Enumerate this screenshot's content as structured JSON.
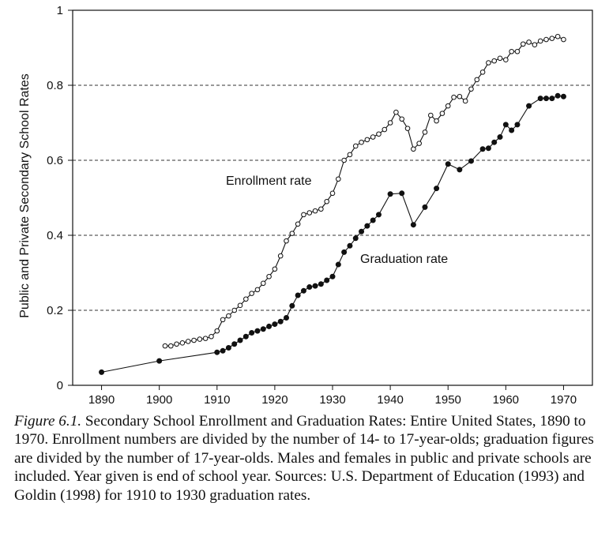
{
  "chart_data": {
    "type": "line",
    "ylabel": "Public and Private Secondary School Rates",
    "xlabel": "",
    "xlim": [
      1885,
      1975
    ],
    "ylim": [
      0,
      1
    ],
    "x_ticks": [
      "1890",
      "1900",
      "1910",
      "1920",
      "1930",
      "1940",
      "1950",
      "1960",
      "1970"
    ],
    "y_ticks": [
      "0",
      "0.2",
      "0.4",
      "0.6",
      "0.8",
      "1"
    ],
    "gridlines": "dashed horizontal at 0.2, 0.4, 0.6, 0.8",
    "series": [
      {
        "name": "Enrollment rate",
        "marker": "open-circle",
        "points": [
          [
            1901,
            0.105
          ],
          [
            1902,
            0.105
          ],
          [
            1903,
            0.11
          ],
          [
            1904,
            0.113
          ],
          [
            1905,
            0.117
          ],
          [
            1906,
            0.12
          ],
          [
            1907,
            0.123
          ],
          [
            1908,
            0.125
          ],
          [
            1909,
            0.13
          ],
          [
            1910,
            0.145
          ],
          [
            1911,
            0.175
          ],
          [
            1912,
            0.185
          ],
          [
            1913,
            0.2
          ],
          [
            1914,
            0.213
          ],
          [
            1915,
            0.23
          ],
          [
            1916,
            0.245
          ],
          [
            1917,
            0.255
          ],
          [
            1918,
            0.272
          ],
          [
            1919,
            0.29
          ],
          [
            1920,
            0.31
          ],
          [
            1921,
            0.345
          ],
          [
            1922,
            0.385
          ],
          [
            1923,
            0.405
          ],
          [
            1924,
            0.43
          ],
          [
            1925,
            0.455
          ],
          [
            1926,
            0.46
          ],
          [
            1927,
            0.465
          ],
          [
            1928,
            0.47
          ],
          [
            1929,
            0.49
          ],
          [
            1930,
            0.512
          ],
          [
            1931,
            0.55
          ],
          [
            1932,
            0.6
          ],
          [
            1933,
            0.615
          ],
          [
            1934,
            0.638
          ],
          [
            1935,
            0.648
          ],
          [
            1936,
            0.655
          ],
          [
            1937,
            0.662
          ],
          [
            1938,
            0.67
          ],
          [
            1939,
            0.682
          ],
          [
            1940,
            0.7
          ],
          [
            1941,
            0.728
          ],
          [
            1942,
            0.71
          ],
          [
            1943,
            0.685
          ],
          [
            1944,
            0.63
          ],
          [
            1945,
            0.645
          ],
          [
            1946,
            0.675
          ],
          [
            1947,
            0.72
          ],
          [
            1948,
            0.705
          ],
          [
            1949,
            0.725
          ],
          [
            1950,
            0.745
          ],
          [
            1951,
            0.768
          ],
          [
            1952,
            0.77
          ],
          [
            1953,
            0.758
          ],
          [
            1954,
            0.79
          ],
          [
            1955,
            0.815
          ],
          [
            1956,
            0.835
          ],
          [
            1957,
            0.86
          ],
          [
            1958,
            0.865
          ],
          [
            1959,
            0.872
          ],
          [
            1960,
            0.868
          ],
          [
            1961,
            0.89
          ],
          [
            1962,
            0.89
          ],
          [
            1963,
            0.91
          ],
          [
            1964,
            0.915
          ],
          [
            1965,
            0.908
          ],
          [
            1966,
            0.918
          ],
          [
            1967,
            0.922
          ],
          [
            1968,
            0.925
          ],
          [
            1969,
            0.93
          ],
          [
            1970,
            0.922
          ]
        ]
      },
      {
        "name": "Graduation rate",
        "marker": "filled-circle",
        "points": [
          [
            1890,
            0.035
          ],
          [
            1900,
            0.065
          ],
          [
            1910,
            0.088
          ],
          [
            1911,
            0.092
          ],
          [
            1912,
            0.1
          ],
          [
            1913,
            0.11
          ],
          [
            1914,
            0.12
          ],
          [
            1915,
            0.13
          ],
          [
            1916,
            0.14
          ],
          [
            1917,
            0.145
          ],
          [
            1918,
            0.15
          ],
          [
            1919,
            0.157
          ],
          [
            1920,
            0.163
          ],
          [
            1921,
            0.17
          ],
          [
            1922,
            0.18
          ],
          [
            1923,
            0.212
          ],
          [
            1924,
            0.24
          ],
          [
            1925,
            0.252
          ],
          [
            1926,
            0.262
          ],
          [
            1927,
            0.265
          ],
          [
            1928,
            0.27
          ],
          [
            1929,
            0.28
          ],
          [
            1930,
            0.29
          ],
          [
            1931,
            0.322
          ],
          [
            1932,
            0.355
          ],
          [
            1933,
            0.372
          ],
          [
            1934,
            0.392
          ],
          [
            1935,
            0.41
          ],
          [
            1936,
            0.425
          ],
          [
            1937,
            0.44
          ],
          [
            1938,
            0.455
          ],
          [
            1940,
            0.51
          ],
          [
            1942,
            0.512
          ],
          [
            1944,
            0.428
          ],
          [
            1946,
            0.475
          ],
          [
            1948,
            0.525
          ],
          [
            1950,
            0.59
          ],
          [
            1952,
            0.575
          ],
          [
            1954,
            0.598
          ],
          [
            1956,
            0.63
          ],
          [
            1957,
            0.632
          ],
          [
            1958,
            0.648
          ],
          [
            1959,
            0.662
          ],
          [
            1960,
            0.695
          ],
          [
            1961,
            0.68
          ],
          [
            1962,
            0.695
          ],
          [
            1964,
            0.745
          ],
          [
            1966,
            0.765
          ],
          [
            1967,
            0.765
          ],
          [
            1968,
            0.765
          ],
          [
            1969,
            0.772
          ],
          [
            1970,
            0.77
          ]
        ]
      }
    ],
    "annotations": [
      "Enrollment rate",
      "Graduation rate"
    ]
  },
  "caption": {
    "figure_label": "Figure 6.1.",
    "text": " Secondary School Enrollment and Graduation Rates: Entire United States, 1890 to 1970. Enrollment numbers are divided by the number of 14- to 17-year-olds; graduation figures are divided by the number of 17-year-olds. Males and females in public and private schools are included. Year given is end of school year. Sources: U.S. Department of Education (1993) and Goldin (1998) for 1910 to 1930 graduation rates."
  }
}
